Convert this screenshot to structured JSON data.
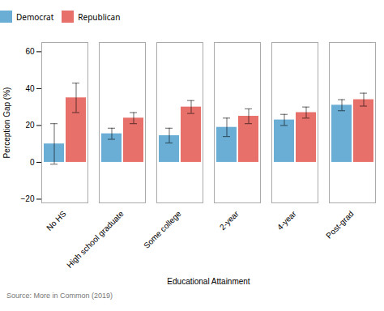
{
  "chart_data": {
    "type": "bar",
    "xlabel": "Educational Attainment",
    "ylabel": "Perception Gap (%)",
    "annotation": "Source: More in Common (2019)",
    "categories": [
      "No HS",
      "High school graduate",
      "Some college",
      "2-year",
      "4-year",
      "Post-grad"
    ],
    "series": [
      {
        "name": "Democrat",
        "color": "#6AAED6",
        "values": [
          10,
          15.5,
          14.5,
          19,
          23,
          31
        ],
        "errors": [
          11,
          3,
          4,
          5,
          3,
          3
        ]
      },
      {
        "name": "Republican",
        "color": "#E8706A",
        "values": [
          35,
          24,
          30,
          25,
          27,
          34
        ],
        "errors": [
          8,
          3,
          3.5,
          4,
          3,
          3.5
        ]
      }
    ],
    "ylim": [
      -22,
      65
    ],
    "yticks": [
      -20,
      0,
      20,
      40,
      60
    ],
    "grid": false,
    "legend": "top"
  }
}
